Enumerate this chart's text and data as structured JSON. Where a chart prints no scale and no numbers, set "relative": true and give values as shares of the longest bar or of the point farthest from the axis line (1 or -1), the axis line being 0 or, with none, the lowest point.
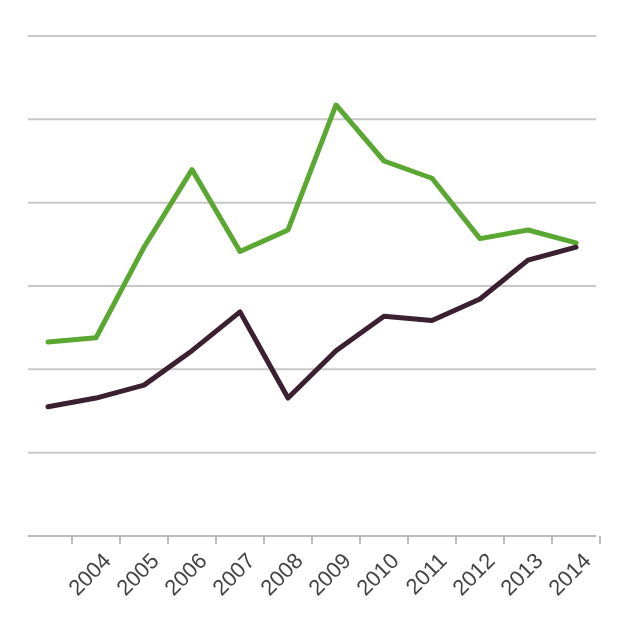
{
  "chart_data": {
    "type": "line",
    "relative": true,
    "grid": "y",
    "marker": "none",
    "line_style": "solid",
    "categories": [
      null,
      "2004",
      "2005",
      "2006",
      "2007",
      "2008",
      "2009",
      "2010",
      "2011",
      "2012",
      "2013",
      "2014"
    ],
    "series": [
      {
        "color": "#5aa832",
        "values": [
          0.45,
          0.46,
          0.67,
          0.85,
          0.66,
          0.71,
          1.0,
          0.87,
          0.83,
          0.69,
          0.71,
          0.68
        ]
      },
      {
        "color": "#3a2030",
        "values": [
          0.3,
          0.32,
          0.35,
          0.43,
          0.52,
          0.32,
          0.43,
          0.51,
          0.5,
          0.55,
          0.64,
          0.67
        ]
      }
    ]
  }
}
